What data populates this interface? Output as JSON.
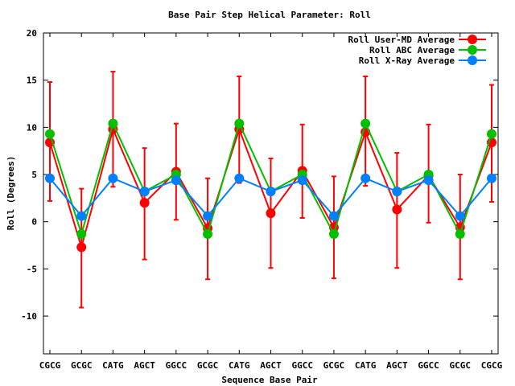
{
  "chart_data": {
    "type": "line",
    "title": "Base Pair Step Helical Parameter: Roll",
    "xlabel": "Sequence Base Pair",
    "ylabel": "Roll (Degrees)",
    "ylim": [
      -14,
      20
    ],
    "yticks": [
      20,
      15,
      10,
      5,
      0,
      -5,
      -10
    ],
    "ytick_labels": [
      "20",
      "15",
      "10",
      "5",
      "0",
      "-5",
      "-10"
    ],
    "categories": [
      "CGCG",
      "GCGC",
      "CATG",
      "AGCT",
      "GGCC",
      "GCGC",
      "CATG",
      "AGCT",
      "GGCC",
      "GCGC",
      "CATG",
      "AGCT",
      "GGCC",
      "GCGC",
      "CGCG"
    ],
    "grid": false,
    "legend_position": "top-right",
    "series": [
      {
        "name": "Roll User-MD Average",
        "color": "#ff0000",
        "values": [
          8.4,
          -2.7,
          9.8,
          2.0,
          5.3,
          -0.7,
          9.8,
          0.9,
          5.4,
          -0.6,
          9.5,
          1.3,
          4.9,
          -0.6,
          8.4
        ],
        "error_low": [
          2.2,
          -9.1,
          3.7,
          -4.0,
          0.2,
          -6.1,
          4.1,
          -4.9,
          0.4,
          -6.0,
          3.8,
          -4.9,
          -0.1,
          -6.1,
          2.1
        ],
        "error_high": [
          14.8,
          3.5,
          15.9,
          7.8,
          10.4,
          4.6,
          15.4,
          6.7,
          10.3,
          4.8,
          15.4,
          7.3,
          10.3,
          5.0,
          14.5
        ]
      },
      {
        "name": "Roll ABC Average",
        "color": "#00c000",
        "values": [
          9.3,
          -1.3,
          10.4,
          3.2,
          5.0,
          -1.3,
          10.4,
          3.2,
          5.0,
          -1.3,
          10.4,
          3.2,
          5.0,
          -1.3,
          9.3
        ]
      },
      {
        "name": "Roll X-Ray Average",
        "color": "#0080ff",
        "values": [
          4.6,
          0.6,
          4.6,
          3.2,
          4.4,
          0.6,
          4.6,
          3.2,
          4.4,
          0.6,
          4.6,
          3.2,
          4.4,
          0.6,
          4.6
        ]
      }
    ]
  }
}
